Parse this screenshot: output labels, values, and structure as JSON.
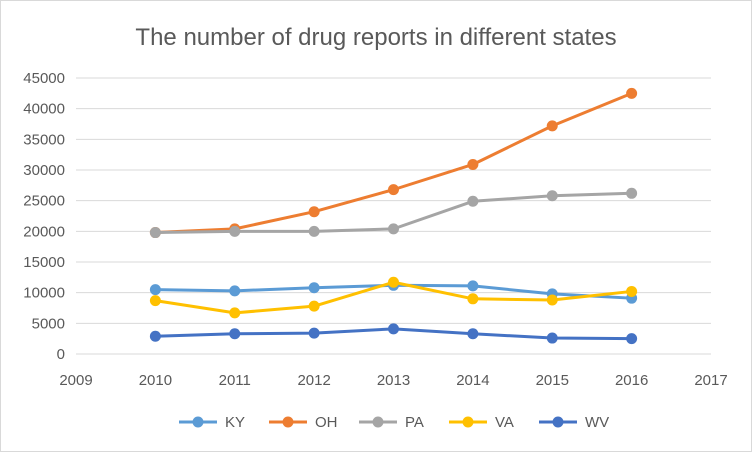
{
  "chart_data": {
    "type": "line",
    "title": "The number of drug reports in different states",
    "xlabel": "",
    "ylabel": "",
    "xlim": [
      2009,
      2017
    ],
    "ylim": [
      0,
      45000
    ],
    "x_ticks": [
      2009,
      2010,
      2011,
      2012,
      2013,
      2014,
      2015,
      2016,
      2017
    ],
    "y_ticks": [
      0,
      5000,
      10000,
      15000,
      20000,
      25000,
      30000,
      35000,
      40000,
      45000
    ],
    "grid": "horizontal",
    "legend_position": "bottom",
    "x": [
      2010,
      2011,
      2012,
      2013,
      2014,
      2015,
      2016
    ],
    "series": [
      {
        "name": "KY",
        "color": "#5b9bd5",
        "values": [
          10500,
          10300,
          10800,
          11200,
          11100,
          9800,
          9100
        ]
      },
      {
        "name": "OH",
        "color": "#ed7d31",
        "values": [
          19800,
          20400,
          23200,
          26800,
          30900,
          37200,
          42500
        ]
      },
      {
        "name": "PA",
        "color": "#a5a5a5",
        "values": [
          19800,
          20000,
          20000,
          20400,
          24900,
          25800,
          26200
        ]
      },
      {
        "name": "VA",
        "color": "#ffc000",
        "values": [
          8700,
          6700,
          7800,
          11700,
          9000,
          8800,
          10200
        ]
      },
      {
        "name": "WV",
        "color": "#4472c4",
        "values": [
          2900,
          3300,
          3400,
          4100,
          3300,
          2600,
          2500
        ]
      }
    ]
  }
}
